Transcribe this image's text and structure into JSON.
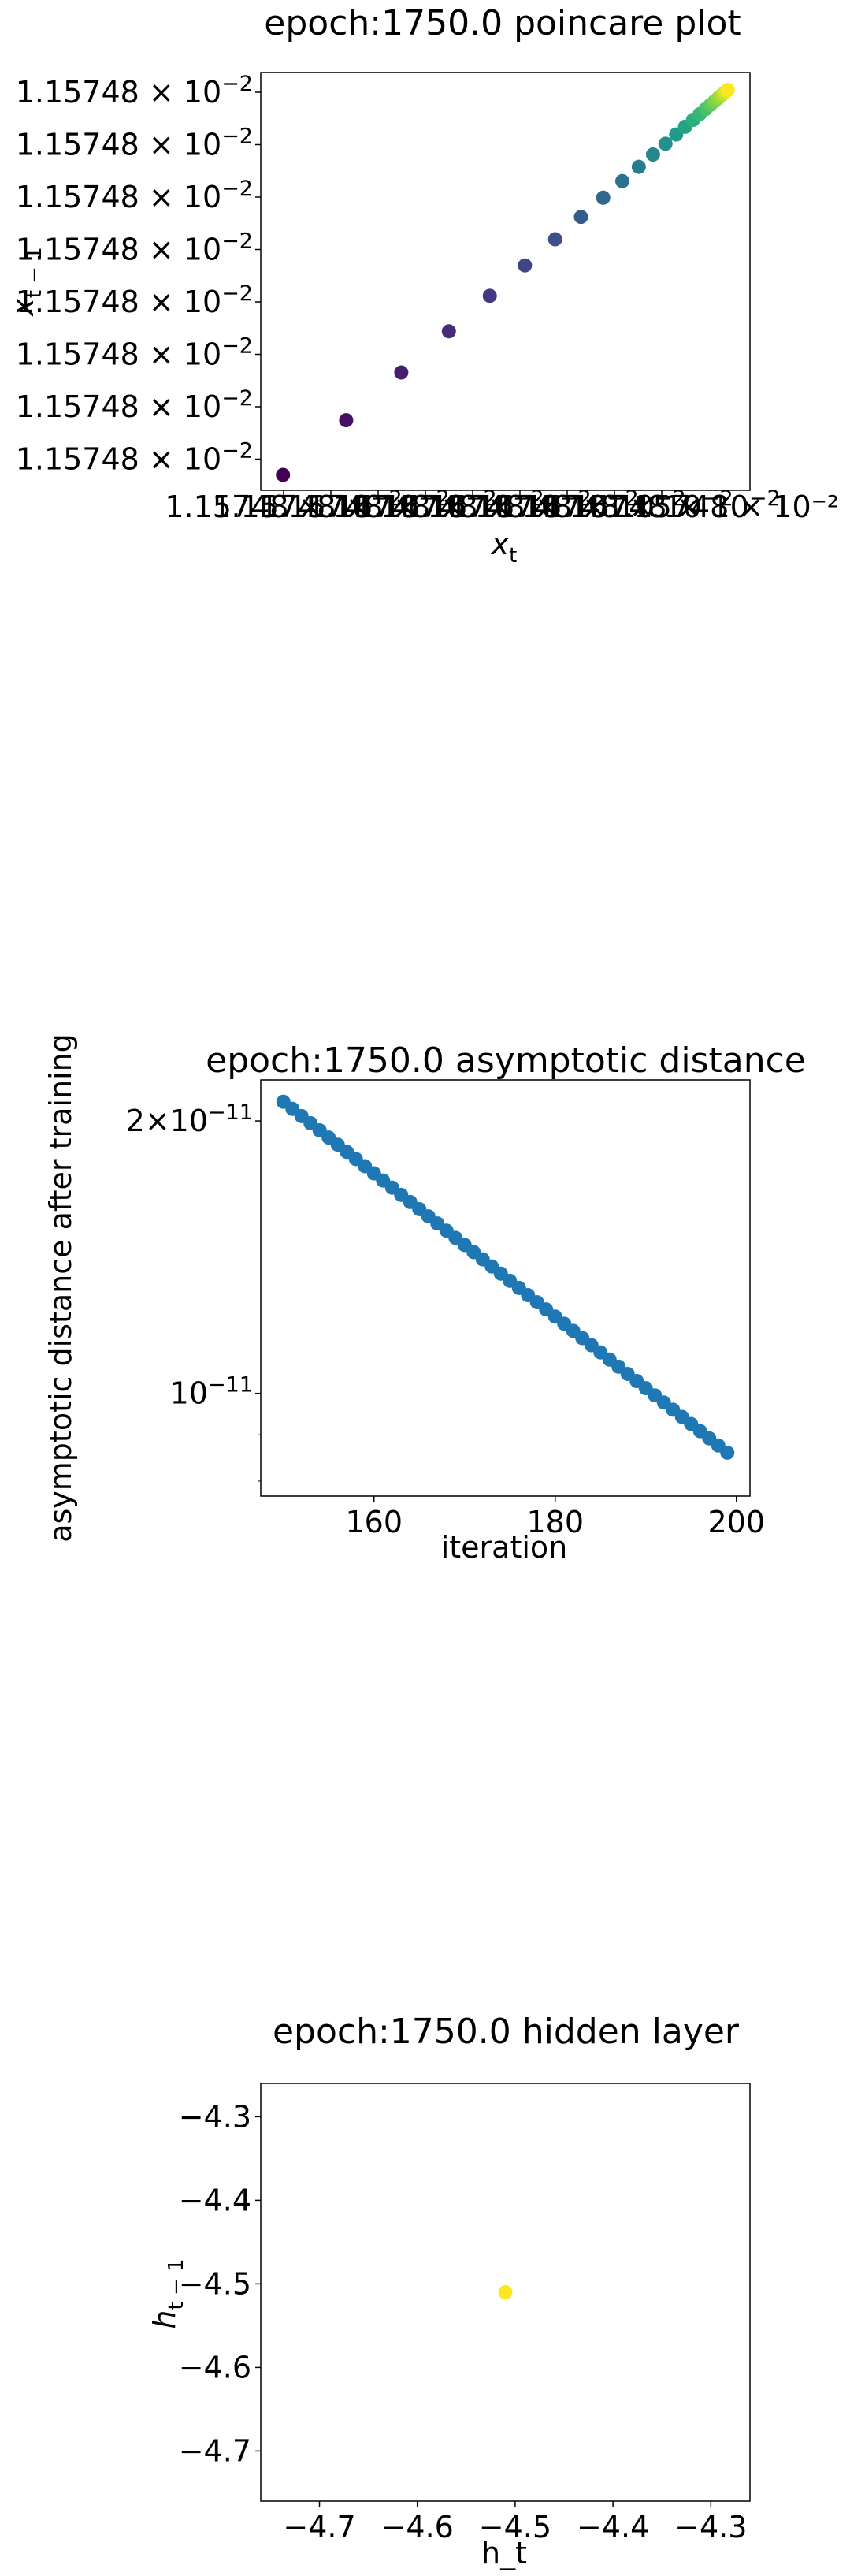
{
  "chart_data": [
    {
      "id": "poincare",
      "type": "scatter",
      "title": "epoch:1750.0 poincare plot",
      "xlabel": "x_t",
      "ylabel": "x_{t-1}",
      "x_tick_label": "1.15748",
      "x_tick_exponent": "−2",
      "x_offset_label": "1.15748 × 10⁻²",
      "y_tick_labels": [
        "1.15748",
        "1.15748",
        "1.15748",
        "1.15748",
        "1.15748",
        "1.15748",
        "1.15748",
        "1.15748"
      ],
      "y_tick_exponent": "−2",
      "colormap": [
        "#440154",
        "#482878",
        "#3e4989",
        "#31688e",
        "#26828e",
        "#1f9e89",
        "#35b779",
        "#6ece58",
        "#b5de2b",
        "#fde725"
      ],
      "x_norm": [
        0.0,
        0.142,
        0.266,
        0.373,
        0.465,
        0.544,
        0.612,
        0.67,
        0.72,
        0.763,
        0.8,
        0.832,
        0.86,
        0.884,
        0.904,
        0.922,
        0.937,
        0.95,
        0.961,
        0.97,
        0.978,
        0.985,
        0.991,
        0.996,
        1.0
      ],
      "xlim_norm": [
        -0.05,
        1.05
      ],
      "ylim_norm": [
        -0.04,
        1.045
      ]
    },
    {
      "id": "asymptotic",
      "type": "scatter",
      "title": "epoch:1750.0 asymptotic distance",
      "xlabel": "iteration",
      "ylabel": "asymptotic distance after training",
      "yscale": "log",
      "x_start": 150,
      "x_end": 199,
      "y_start": 2.1e-11,
      "y_end": 8.6e-12,
      "xlim": [
        147.5,
        201.5
      ],
      "ylim": [
        7.7e-12,
        2.22e-11
      ],
      "x_ticks": [
        160,
        180,
        200
      ],
      "y_ticks": [
        {
          "value": 2e-11,
          "base": "2×10",
          "exp": "−11"
        },
        {
          "value": 1e-11,
          "base": "10",
          "exp": "−11"
        }
      ],
      "y_minor_ticks": [
        8e-12,
        9e-12
      ],
      "color": "#1f77b4"
    },
    {
      "id": "hidden",
      "type": "scatter",
      "title": "epoch:1750.0 hidden layer",
      "xlabel": "h_t",
      "ylabel": "h_{t-1}",
      "x": [
        -4.51
      ],
      "y": [
        -4.51
      ],
      "xlim": [
        -4.76,
        -4.26
      ],
      "ylim": [
        -4.76,
        -4.26
      ],
      "x_ticks": [
        -4.7,
        -4.6,
        -4.5,
        -4.4,
        -4.3
      ],
      "y_ticks": [
        -4.3,
        -4.4,
        -4.5,
        -4.6,
        -4.7
      ],
      "color": "#fde725"
    }
  ]
}
